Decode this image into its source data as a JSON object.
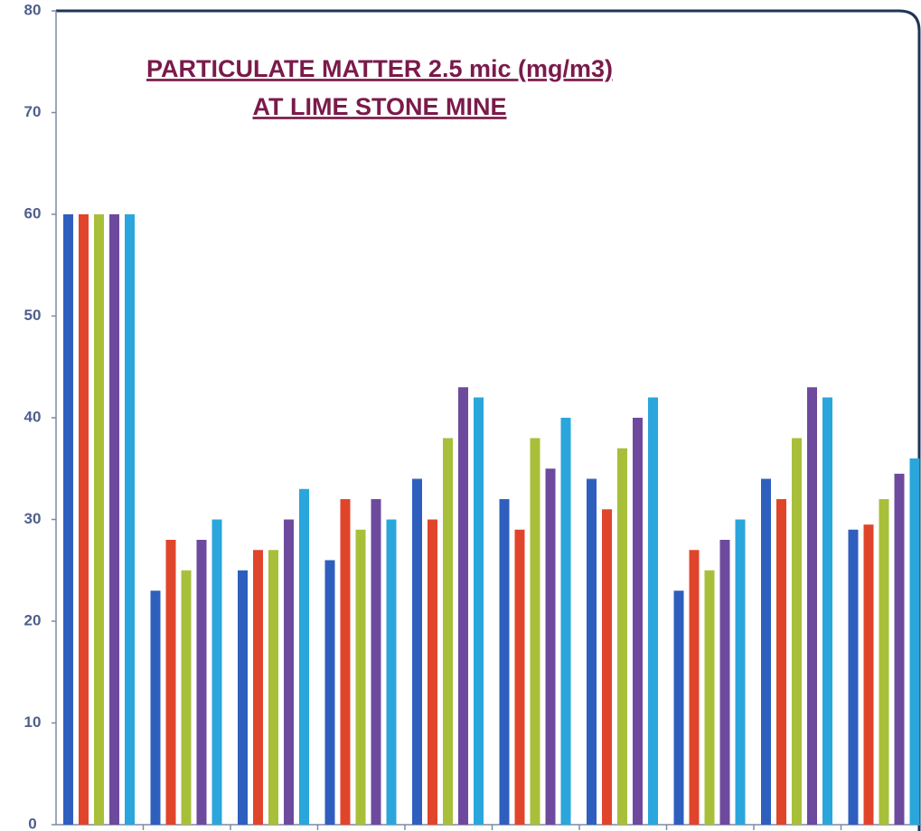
{
  "chart_data": {
    "type": "bar",
    "title": [
      "PARTICULATE MATTER 2.5 mic (mg/m3)",
      "AT LIME STONE MINE"
    ],
    "categories": [
      null,
      null,
      null,
      null,
      null,
      null,
      null,
      null,
      null,
      null
    ],
    "series": [
      {
        "color": "#2e5fbf",
        "values": [
          60,
          23,
          25,
          26,
          34,
          32,
          34,
          23,
          34,
          29
        ]
      },
      {
        "color": "#e0452b",
        "values": [
          60,
          28,
          27,
          32,
          30,
          29,
          31,
          27,
          32,
          29.5
        ]
      },
      {
        "color": "#a8bf3a",
        "values": [
          60,
          25,
          27,
          29,
          38,
          38,
          37,
          25,
          38,
          32
        ]
      },
      {
        "color": "#6d4a9e",
        "values": [
          60,
          28,
          30,
          32,
          43,
          35,
          40,
          28,
          43,
          34.5
        ]
      },
      {
        "color": "#2aa6dc",
        "values": [
          60,
          30,
          33,
          30,
          42,
          40,
          42,
          30,
          42,
          36
        ]
      }
    ],
    "ylim": [
      0,
      80
    ],
    "yticks": [
      0,
      10,
      20,
      30,
      40,
      50,
      60,
      70,
      80
    ]
  }
}
